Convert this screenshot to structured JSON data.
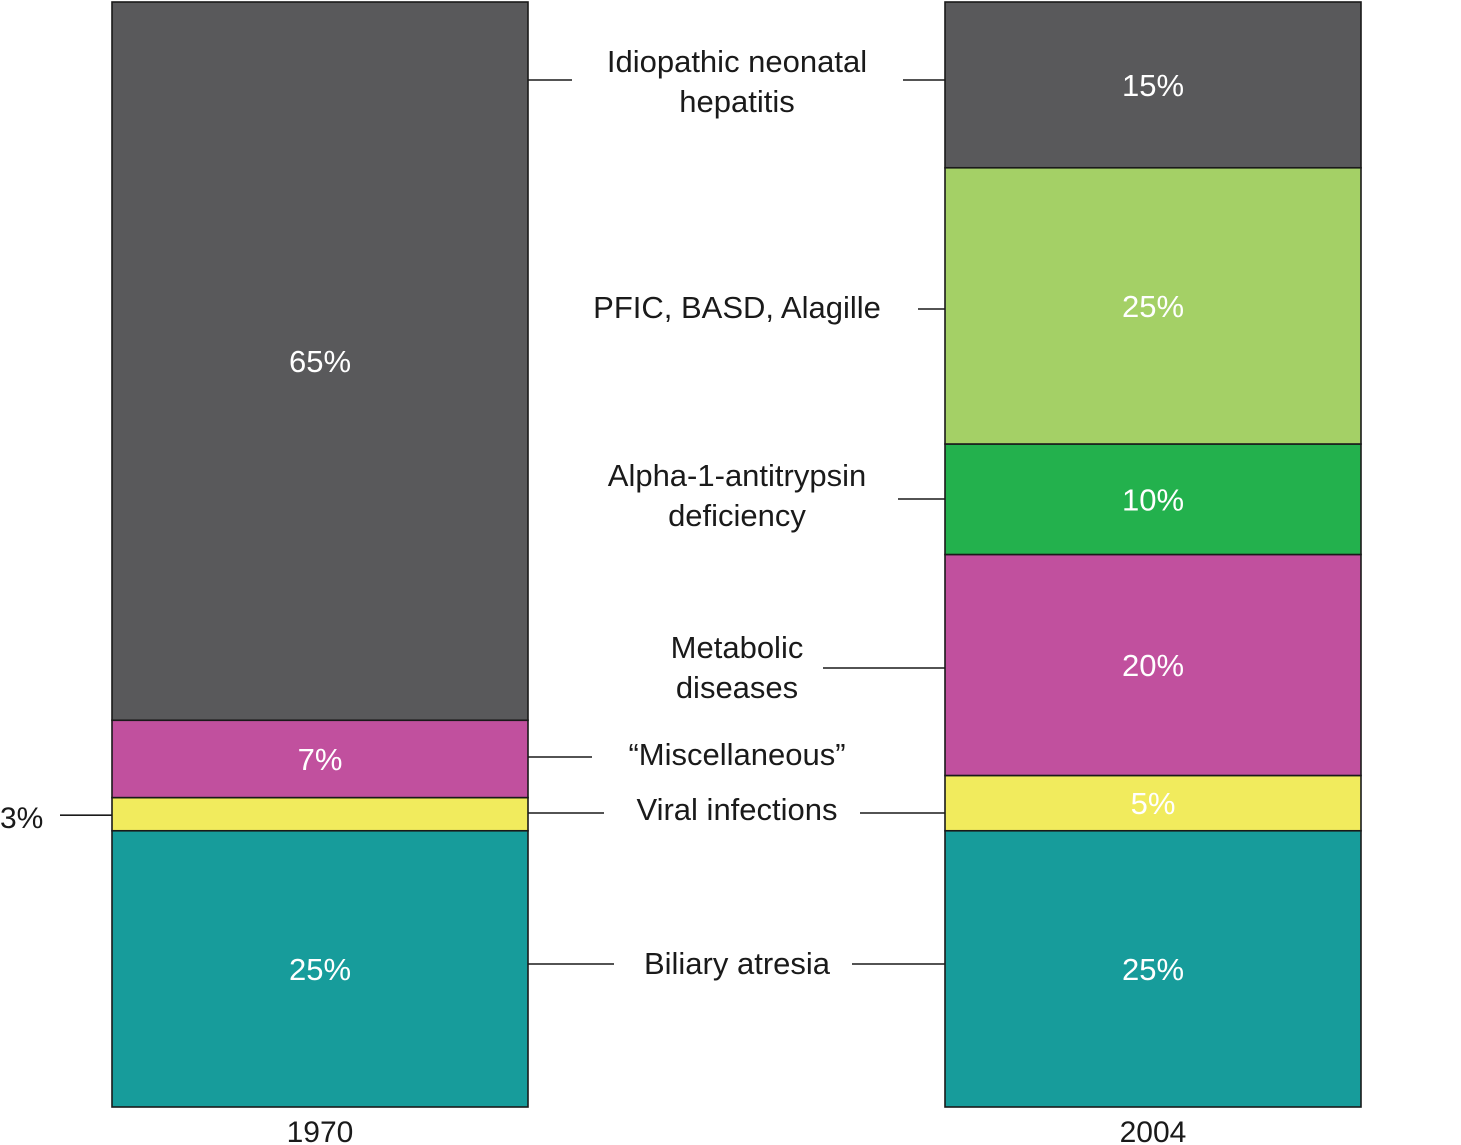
{
  "chart_data": {
    "type": "bar",
    "stacked": true,
    "categories": [
      "1970",
      "2004"
    ],
    "series": [
      {
        "name": "Biliary atresia",
        "values": [
          25,
          25
        ],
        "color": "#179c9b",
        "labels": [
          "25%",
          "25%"
        ]
      },
      {
        "name": "Viral infections",
        "values": [
          3,
          5
        ],
        "color": "#f1eb5d",
        "labels": [
          "3%",
          "5%"
        ]
      },
      {
        "name": "“Miscellaneous”",
        "values": [
          7,
          0
        ],
        "color": "#c1509e",
        "labels": [
          "7%",
          ""
        ]
      },
      {
        "name": "Metabolic diseases",
        "values": [
          0,
          20
        ],
        "color": "#c1509e",
        "labels": [
          "",
          "20%"
        ]
      },
      {
        "name": "Alpha-1-antitrypsin deficiency",
        "values": [
          0,
          10
        ],
        "color": "#23b14d",
        "labels": [
          "",
          "10%"
        ]
      },
      {
        "name": "PFIC, BASD, Alagille",
        "values": [
          0,
          25
        ],
        "color": "#a4d066",
        "labels": [
          "",
          "25%"
        ]
      },
      {
        "name": "Idiopathic neonatal hepatitis",
        "values": [
          65,
          15
        ],
        "color": "#59595b",
        "labels": [
          "65%",
          "15%"
        ]
      }
    ],
    "category_labels": [
      {
        "series": "Idiopathic neonatal hepatitis",
        "lines": [
          "Idiopathic neonatal",
          "hepatitis"
        ]
      },
      {
        "series": "PFIC, BASD, Alagille",
        "lines": [
          "PFIC, BASD, Alagille"
        ]
      },
      {
        "series": "Alpha-1-antitrypsin deficiency",
        "lines": [
          "Alpha-1-antitrypsin",
          "deficiency"
        ]
      },
      {
        "series": "Metabolic diseases",
        "lines": [
          "Metabolic",
          "diseases"
        ]
      },
      {
        "series": "“Miscellaneous”",
        "lines": [
          "“Miscellaneous”"
        ]
      },
      {
        "series": "Viral infections",
        "lines": [
          "Viral infections"
        ]
      },
      {
        "series": "Biliary atresia",
        "lines": [
          "Biliary atresia"
        ]
      }
    ],
    "ylim": [
      0,
      100
    ],
    "title": "",
    "xlabel": "",
    "ylabel": ""
  }
}
